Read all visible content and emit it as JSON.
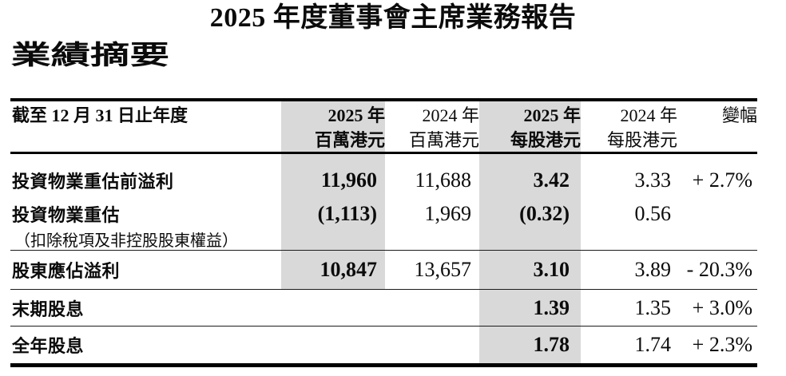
{
  "page": {
    "title": "2025 年度董事會主席業務報告",
    "section_heading": "業績摘要"
  },
  "table": {
    "header": {
      "row_label": "截至 12 月 31 日止年度",
      "col_2025_m_line1": "2025 年",
      "col_2025_m_line2": "百萬港元",
      "col_2024_m_line1": "2024 年",
      "col_2024_m_line2": "百萬港元",
      "col_2025_ps_line1": "2025 年",
      "col_2025_ps_line2": "每股港元",
      "col_2024_ps_line1": "2024 年",
      "col_2024_ps_line2": "每股港元",
      "col_change_line2": "變幅"
    },
    "rows": [
      {
        "label": "投資物業重估前溢利",
        "m2025": "11,960",
        "m2024": "11,688",
        "ps2025": "3.42",
        "ps2024": "3.33",
        "change": "+ 2.7%"
      },
      {
        "label": "投資物業重估",
        "m2025": "(1,113)",
        "m2024": "1,969",
        "ps2025": "(0.32)",
        "ps2024": "0.56",
        "change": ""
      },
      {
        "sublabel": "（扣除稅項及非控股股東權益）"
      },
      {
        "label": "股東應佔溢利",
        "m2025": "10,847",
        "m2024": "13,657",
        "ps2025": "3.10",
        "ps2024": "3.89",
        "change": "- 20.3%"
      },
      {
        "label": "末期股息",
        "m2025": "",
        "m2024": "",
        "ps2025": "1.39",
        "ps2024": "1.35",
        "change": "+ 3.0%"
      },
      {
        "label": "全年股息",
        "m2025": "",
        "m2024": "",
        "ps2025": "1.78",
        "ps2024": "1.74",
        "change": "+ 2.3%"
      }
    ]
  },
  "colors": {
    "shaded_column": "#d9d9d9",
    "text": "#0b0b0b",
    "rule": "#000000"
  }
}
